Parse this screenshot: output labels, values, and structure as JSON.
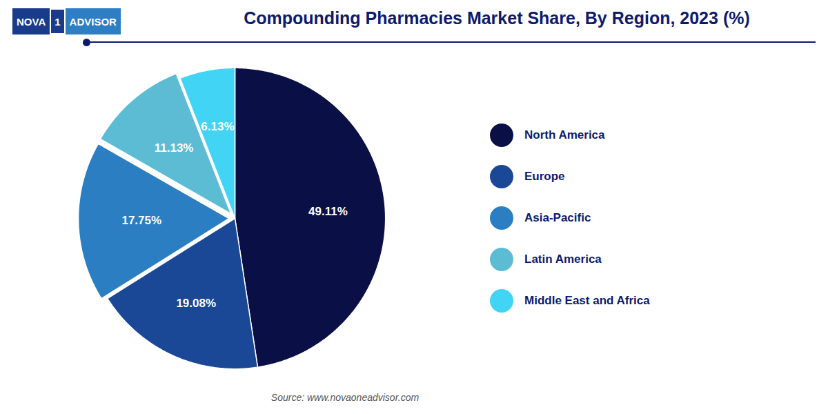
{
  "chart_data": {
    "type": "pie",
    "title": "Compounding Pharmacies Market Share, By Region, 2023 (%)",
    "categories": [
      "North America",
      "Europe",
      "Asia-Pacific",
      "Latin America",
      "Middle East and Africa"
    ],
    "values": [
      49.11,
      19.08,
      17.75,
      11.13,
      6.13
    ],
    "value_labels": [
      "49.11%",
      "19.08%",
      "17.75%",
      "11.13%",
      "6.13%"
    ],
    "colors": [
      "#0a1045",
      "#1b4896",
      "#2b7ec1",
      "#5bbcd4",
      "#41d4f5"
    ],
    "data_labels": true,
    "legend": "right",
    "annotations": [
      "NOVA",
      "1",
      "ADVISOR"
    ],
    "source": "Source: www.novaoneadvisor.com"
  }
}
